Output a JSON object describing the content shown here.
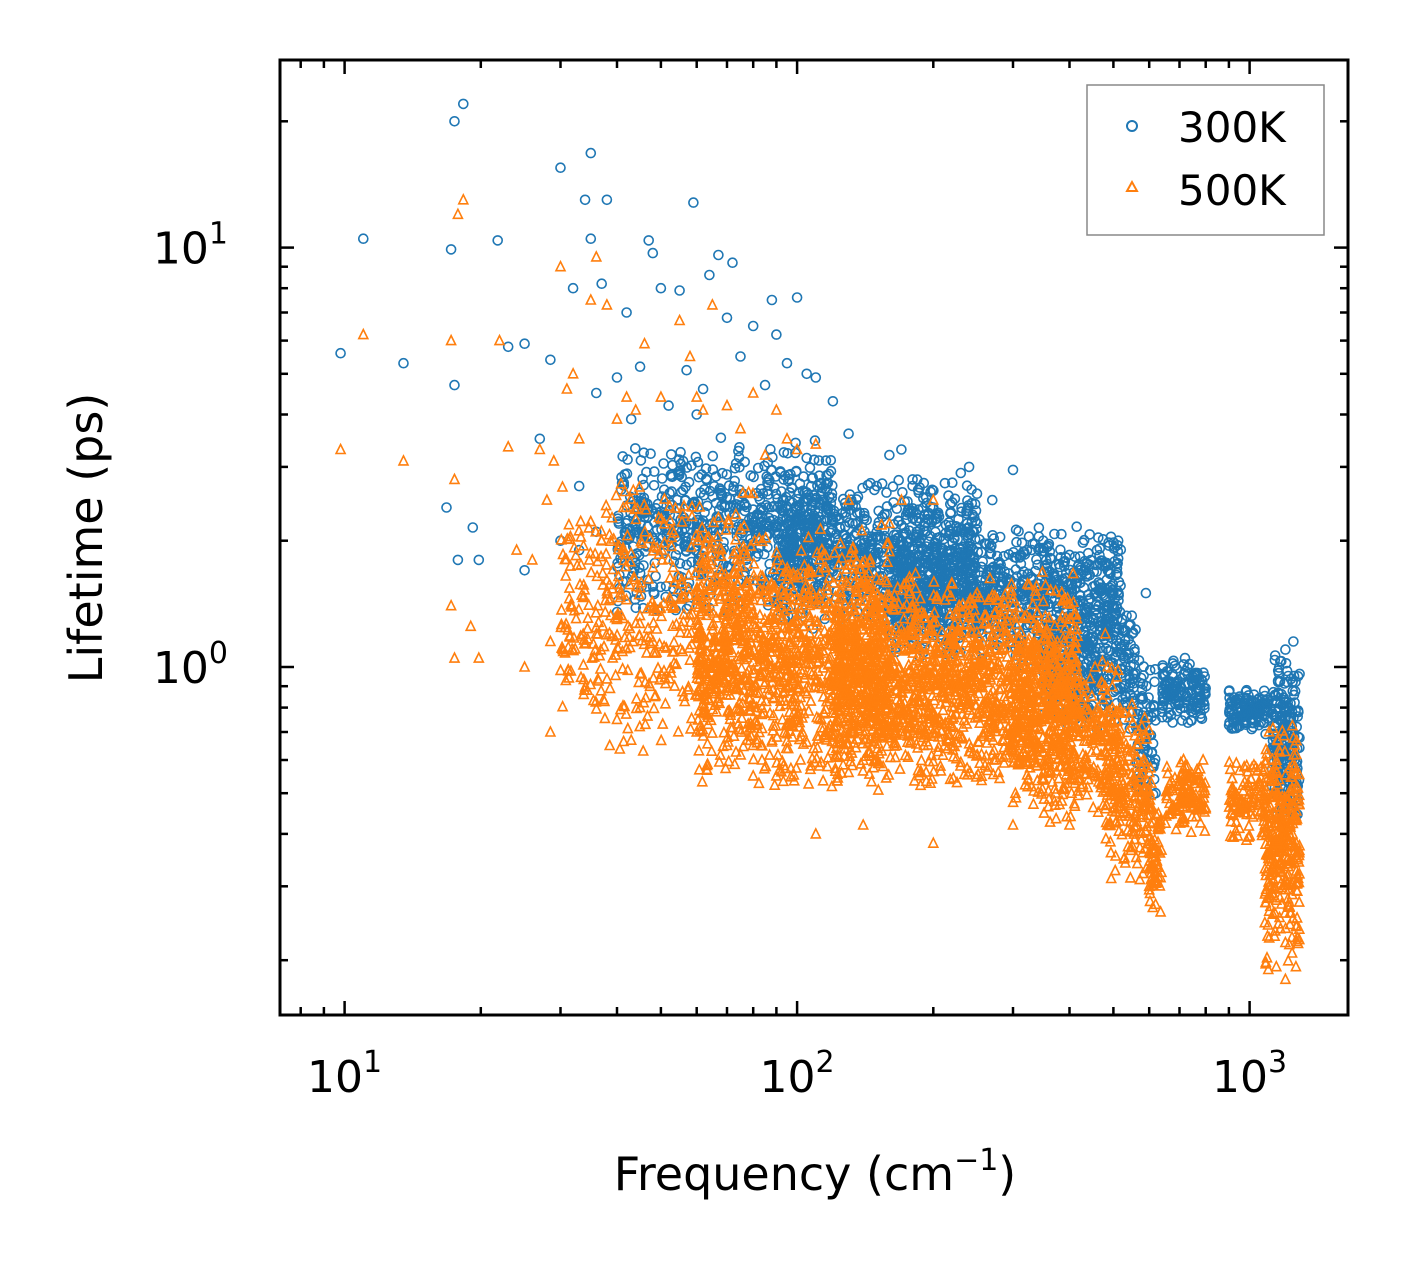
{
  "chart_data": {
    "type": "scatter",
    "xscale": "log",
    "yscale": "log",
    "xlim": [
      7.2,
      1650
    ],
    "ylim": [
      0.148,
      28
    ],
    "xlabel_main": "Frequency (cm",
    "xlabel_sup": "−1",
    "xlabel_end": ")",
    "ylabel": "Lifetime (ps)",
    "x_ticks": [
      {
        "value": 10,
        "base": "10",
        "exp": "1"
      },
      {
        "value": 100,
        "base": "10",
        "exp": "2"
      },
      {
        "value": 1000,
        "base": "10",
        "exp": "3"
      }
    ],
    "y_ticks": [
      {
        "value": 1,
        "base": "10",
        "exp": "0"
      },
      {
        "value": 10,
        "base": "10",
        "exp": "1"
      }
    ],
    "legend_position": "top-right",
    "series": [
      {
        "name": "300K",
        "marker": "circle",
        "color": "#1f77b4",
        "points": [
          [
            9.8,
            5.6
          ],
          [
            11,
            10.5
          ],
          [
            13.5,
            5.3
          ],
          [
            17.5,
            4.7
          ],
          [
            17.2,
            9.9
          ],
          [
            17.5,
            20
          ],
          [
            18.3,
            22
          ],
          [
            21.8,
            10.4
          ],
          [
            23,
            5.8
          ],
          [
            25,
            5.9
          ],
          [
            27,
            3.5
          ],
          [
            28.5,
            5.4
          ],
          [
            30,
            15.5
          ],
          [
            32,
            8
          ],
          [
            33,
            2.7
          ],
          [
            34,
            13
          ],
          [
            35,
            16.8
          ],
          [
            35,
            10.5
          ],
          [
            36,
            4.5
          ],
          [
            38,
            13
          ],
          [
            37,
            8.2
          ],
          [
            40,
            4.9
          ],
          [
            42,
            7
          ],
          [
            43,
            3.9
          ],
          [
            45,
            5.2
          ],
          [
            47,
            10.4
          ],
          [
            48,
            9.7
          ],
          [
            50,
            8
          ],
          [
            52,
            4.2
          ],
          [
            55,
            7.9
          ],
          [
            57,
            5.1
          ],
          [
            59,
            12.8
          ],
          [
            60,
            4
          ],
          [
            62,
            4.6
          ],
          [
            64,
            8.6
          ],
          [
            67,
            9.6
          ],
          [
            70,
            6.8
          ],
          [
            72,
            9.2
          ],
          [
            75,
            5.5
          ],
          [
            80,
            6.5
          ],
          [
            85,
            4.7
          ],
          [
            88,
            7.5
          ],
          [
            90,
            6.2
          ],
          [
            95,
            5.3
          ],
          [
            100,
            7.6
          ],
          [
            105,
            5
          ],
          [
            110,
            4.9
          ],
          [
            120,
            4.3
          ],
          [
            130,
            3.6
          ],
          [
            150,
            2.7
          ],
          [
            160,
            3.2
          ],
          [
            170,
            3.3
          ],
          [
            180,
            2.8
          ],
          [
            200,
            2.4
          ],
          [
            230,
            2.9
          ],
          [
            240,
            3
          ],
          [
            270,
            2.5
          ],
          [
            300,
            2.95
          ],
          [
            350,
            2
          ],
          [
            400,
            1.85
          ],
          [
            460,
            1.9
          ],
          [
            500,
            1.5
          ],
          [
            550,
            1.2
          ],
          [
            590,
            1.5
          ],
          [
            620,
            0.5
          ],
          [
            680,
            0.9
          ],
          [
            720,
            1.05
          ],
          [
            780,
            0.85
          ],
          [
            950,
            0.85
          ],
          [
            1050,
            0.8
          ],
          [
            1150,
            0.6
          ],
          [
            1200,
            1.1
          ],
          [
            1250,
            1.15
          ],
          [
            1280,
            0.95
          ],
          [
            16.8,
            2.4
          ],
          [
            17.8,
            1.8
          ],
          [
            19.2,
            2.15
          ],
          [
            19.8,
            1.8
          ],
          [
            25,
            1.7
          ],
          [
            30,
            2
          ],
          [
            33,
            1.9
          ],
          [
            36,
            2.1
          ],
          [
            42,
            1.6
          ],
          [
            55,
            2
          ],
          [
            65,
            2.2
          ],
          [
            150,
            2.1
          ],
          [
            250,
            2.2
          ]
        ],
        "clusters": [
          {
            "x": [
              40,
              120
            ],
            "y": [
              1.3,
              3.6
            ],
            "n": 700
          },
          {
            "x": [
              90,
              250
            ],
            "y": [
              1.2,
              2.9
            ],
            "n": 800
          },
          {
            "x": [
              160,
              520
            ],
            "y": [
              1.0,
              2.2
            ],
            "n": 1000
          },
          {
            "x": [
              350,
              560
            ],
            "y": [
              0.7,
              1.4
            ],
            "n": 320
          },
          {
            "x": [
              560,
              620
            ],
            "y": [
              0.45,
              1.1
            ],
            "n": 80
          },
          {
            "x": [
              640,
              800
            ],
            "y": [
              0.72,
              1.05
            ],
            "n": 160
          },
          {
            "x": [
              900,
              1100
            ],
            "y": [
              0.68,
              0.9
            ],
            "n": 120
          },
          {
            "x": [
              1120,
              1290
            ],
            "y": [
              0.4,
              1.15
            ],
            "n": 200
          }
        ]
      },
      {
        "name": "500K",
        "marker": "triangle",
        "color": "#ff7f0e",
        "points": [
          [
            9.8,
            3.3
          ],
          [
            11,
            6.2
          ],
          [
            13.5,
            3.1
          ],
          [
            17.2,
            6
          ],
          [
            17.5,
            2.8
          ],
          [
            17.2,
            1.4
          ],
          [
            17.5,
            1.05
          ],
          [
            17.8,
            12
          ],
          [
            18.3,
            13
          ],
          [
            19,
            1.25
          ],
          [
            19.8,
            1.05
          ],
          [
            22,
            6
          ],
          [
            23,
            3.35
          ],
          [
            24,
            1.9
          ],
          [
            25,
            1
          ],
          [
            26,
            1.8
          ],
          [
            27,
            3.3
          ],
          [
            28,
            2.5
          ],
          [
            28.5,
            1.15
          ],
          [
            28.5,
            0.7
          ],
          [
            29,
            3.1
          ],
          [
            30,
            9
          ],
          [
            31,
            4.6
          ],
          [
            32,
            5
          ],
          [
            33,
            3.5
          ],
          [
            35,
            7.5
          ],
          [
            36,
            9.5
          ],
          [
            36,
            1.2
          ],
          [
            38,
            7.3
          ],
          [
            40,
            3.9
          ],
          [
            42,
            4.4
          ],
          [
            44,
            4.1
          ],
          [
            46,
            5.9
          ],
          [
            50,
            4.4
          ],
          [
            55,
            6.7
          ],
          [
            58,
            5.5
          ],
          [
            60,
            4.4
          ],
          [
            62,
            4.1
          ],
          [
            65,
            7.3
          ],
          [
            70,
            4.2
          ],
          [
            75,
            3.7
          ],
          [
            80,
            4.5
          ],
          [
            85,
            3.2
          ],
          [
            90,
            4.1
          ],
          [
            95,
            3.5
          ],
          [
            100,
            3.3
          ],
          [
            110,
            3.4
          ],
          [
            130,
            2.5
          ],
          [
            160,
            2.2
          ],
          [
            170,
            2.5
          ],
          [
            200,
            2.5
          ],
          [
            250,
            1.5
          ],
          [
            300,
            1.4
          ],
          [
            400,
            1.3
          ],
          [
            480,
            1.2
          ],
          [
            40,
            0.75
          ],
          [
            45,
            0.8
          ],
          [
            60,
            0.7
          ],
          [
            70,
            0.65
          ],
          [
            80,
            0.55
          ],
          [
            90,
            0.55
          ],
          [
            110,
            0.4
          ],
          [
            140,
            0.42
          ],
          [
            200,
            0.38
          ],
          [
            300,
            0.42
          ],
          [
            400,
            0.42
          ],
          [
            600,
            0.3
          ],
          [
            1100,
            0.19
          ],
          [
            1200,
            0.18
          ]
        ],
        "clusters": [
          {
            "x": [
              30,
              80
            ],
            "y": [
              0.6,
              3.0
            ],
            "n": 500
          },
          {
            "x": [
              60,
              160
            ],
            "y": [
              0.5,
              2.2
            ],
            "n": 1200
          },
          {
            "x": [
              120,
              420
            ],
            "y": [
              0.5,
              1.7
            ],
            "n": 1600
          },
          {
            "x": [
              300,
              520
            ],
            "y": [
              0.42,
              1.1
            ],
            "n": 400
          },
          {
            "x": [
              480,
              610
            ],
            "y": [
              0.3,
              0.85
            ],
            "n": 220
          },
          {
            "x": [
              600,
              640
            ],
            "y": [
              0.24,
              0.5
            ],
            "n": 60
          },
          {
            "x": [
              650,
              800
            ],
            "y": [
              0.4,
              0.62
            ],
            "n": 140
          },
          {
            "x": [
              900,
              1080
            ],
            "y": [
              0.38,
              0.62
            ],
            "n": 110
          },
          {
            "x": [
              1080,
              1290
            ],
            "y": [
              0.19,
              0.75
            ],
            "n": 330
          }
        ]
      }
    ]
  }
}
